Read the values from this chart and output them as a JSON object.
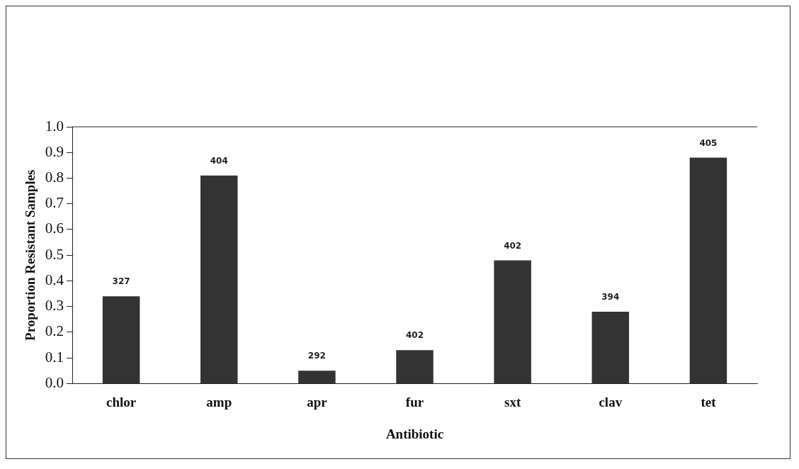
{
  "chart_data": {
    "type": "bar",
    "xlabel": "Antibiotic",
    "ylabel": "Proportion Resistant Samples",
    "categories": [
      "chlor",
      "amp",
      "apr",
      "fur",
      "sxt",
      "clav",
      "tet"
    ],
    "values": [
      0.34,
      0.81,
      0.05,
      0.13,
      0.48,
      0.28,
      0.88
    ],
    "annotations": [
      {
        "text": "327",
        "x": "chlor",
        "y": 0.34
      },
      {
        "text": "404",
        "x": "amp",
        "y": 0.81
      },
      {
        "text": "292",
        "x": "apr",
        "y": 0.05
      },
      {
        "text": "402",
        "x": "fur",
        "y": 0.13
      },
      {
        "text": "402",
        "x": "sxt",
        "y": 0.48
      },
      {
        "text": "394",
        "x": "clav",
        "y": 0.28
      },
      {
        "text": "405",
        "x": "tet",
        "y": 0.88
      }
    ],
    "color": "#333333",
    "ylim": [
      0,
      1
    ],
    "yticks": [
      {
        "value": 0,
        "label": "0.0"
      },
      {
        "value": 0.1,
        "label": "0.1"
      },
      {
        "value": 0.2,
        "label": "0.2"
      },
      {
        "value": 0.3,
        "label": "0.3"
      },
      {
        "value": 0.4,
        "label": "0.4"
      },
      {
        "value": 0.5,
        "label": "0.5"
      },
      {
        "value": 0.6,
        "label": "0.6"
      },
      {
        "value": 0.7,
        "label": "0.7"
      },
      {
        "value": 0.8,
        "label": "0.8"
      },
      {
        "value": 0.9,
        "label": "0.9"
      },
      {
        "value": 1,
        "label": "1.0"
      }
    ],
    "grid": false,
    "legend": false
  }
}
